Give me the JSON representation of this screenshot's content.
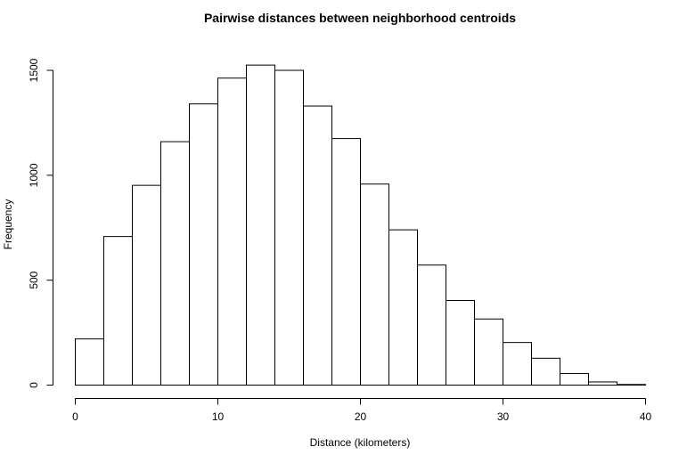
{
  "chart_data": {
    "type": "bar",
    "title": "Pairwise distances between neighborhood centroids",
    "xlabel": "Distance (kilometers)",
    "ylabel": "Frequency",
    "bin_edges": [
      0,
      2,
      4,
      6,
      8,
      10,
      12,
      14,
      16,
      18,
      20,
      22,
      24,
      26,
      28,
      30,
      32,
      34,
      36,
      38,
      40
    ],
    "values": [
      220,
      708,
      952,
      1160,
      1340,
      1463,
      1525,
      1500,
      1330,
      1175,
      958,
      740,
      572,
      403,
      315,
      203,
      128,
      55,
      15,
      3
    ],
    "xlim": [
      0,
      40
    ],
    "ylim": [
      0,
      1500
    ],
    "xticks": [
      0,
      10,
      20,
      30,
      40
    ],
    "yticks": [
      0,
      500,
      1000,
      1500
    ],
    "grid": false,
    "legend": "none"
  }
}
